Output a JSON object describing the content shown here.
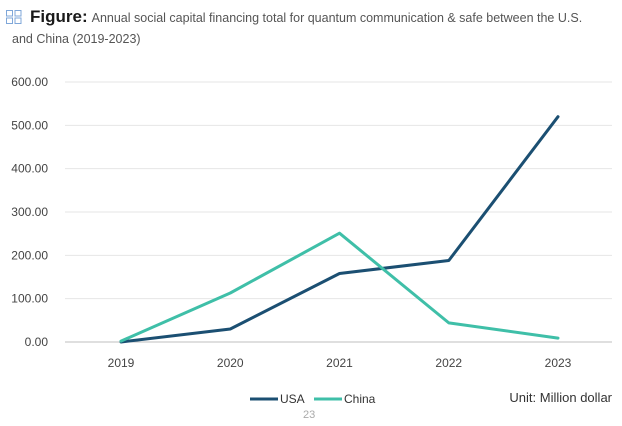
{
  "figure": {
    "label": "Figure:",
    "title_line1": "Annual social capital financing total for quantum communication & safe between the U.S.",
    "title_line2": "and China (2019-2023)",
    "icon": "figure-grid-icon"
  },
  "unit_label": "Unit: Million dollar",
  "page_number": "23",
  "colors": {
    "usa": "#1b4f72",
    "china": "#3fbfa8",
    "grid": "#e6e6e6",
    "axis": "#bfbfbf"
  },
  "chart_data": {
    "type": "line",
    "title": "Annual social capital financing total for quantum communication & safe between the U.S. and China (2019-2023)",
    "xlabel": "",
    "ylabel": "",
    "categories": [
      "2019",
      "2020",
      "2021",
      "2022",
      "2023"
    ],
    "ylim": [
      0,
      600
    ],
    "yticks": [
      "0.00",
      "100.00",
      "200.00",
      "300.00",
      "400.00",
      "500.00",
      "600.00"
    ],
    "grid": true,
    "legend_position": "bottom-center",
    "series": [
      {
        "name": "USA",
        "values": [
          0,
          30,
          158,
          188,
          520
        ]
      },
      {
        "name": "China",
        "values": [
          2,
          113,
          251,
          44,
          9
        ]
      }
    ]
  }
}
